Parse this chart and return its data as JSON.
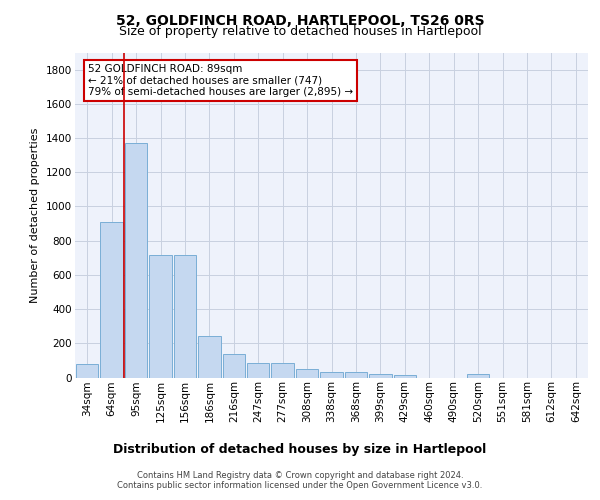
{
  "title": "52, GOLDFINCH ROAD, HARTLEPOOL, TS26 0RS",
  "subtitle": "Size of property relative to detached houses in Hartlepool",
  "xlabel": "Distribution of detached houses by size in Hartlepool",
  "ylabel": "Number of detached properties",
  "categories": [
    "34sqm",
    "64sqm",
    "95sqm",
    "125sqm",
    "156sqm",
    "186sqm",
    "216sqm",
    "247sqm",
    "277sqm",
    "308sqm",
    "338sqm",
    "368sqm",
    "399sqm",
    "429sqm",
    "460sqm",
    "490sqm",
    "520sqm",
    "551sqm",
    "581sqm",
    "612sqm",
    "642sqm"
  ],
  "values": [
    80,
    910,
    1370,
    715,
    715,
    245,
    140,
    85,
    85,
    50,
    35,
    30,
    20,
    15,
    0,
    0,
    20,
    0,
    0,
    0,
    0
  ],
  "bar_color": "#c5d8f0",
  "bar_edge_color": "#7aaed6",
  "vline_pos": 1.5,
  "vline_color": "#cc0000",
  "annotation_text": "52 GOLDFINCH ROAD: 89sqm\n← 21% of detached houses are smaller (747)\n79% of semi-detached houses are larger (2,895) →",
  "annotation_box_facecolor": "#ffffff",
  "annotation_box_edgecolor": "#cc0000",
  "ylim": [
    0,
    1900
  ],
  "yticks": [
    0,
    200,
    400,
    600,
    800,
    1000,
    1200,
    1400,
    1600,
    1800
  ],
  "footer_line1": "Contains HM Land Registry data © Crown copyright and database right 2024.",
  "footer_line2": "Contains public sector information licensed under the Open Government Licence v3.0.",
  "plot_bg_color": "#eef2fb",
  "grid_color": "#c8d0e0",
  "title_fontsize": 10,
  "subtitle_fontsize": 9,
  "ylabel_fontsize": 8,
  "xlabel_fontsize": 9,
  "tick_fontsize": 7.5,
  "annotation_fontsize": 7.5,
  "footer_fontsize": 6
}
